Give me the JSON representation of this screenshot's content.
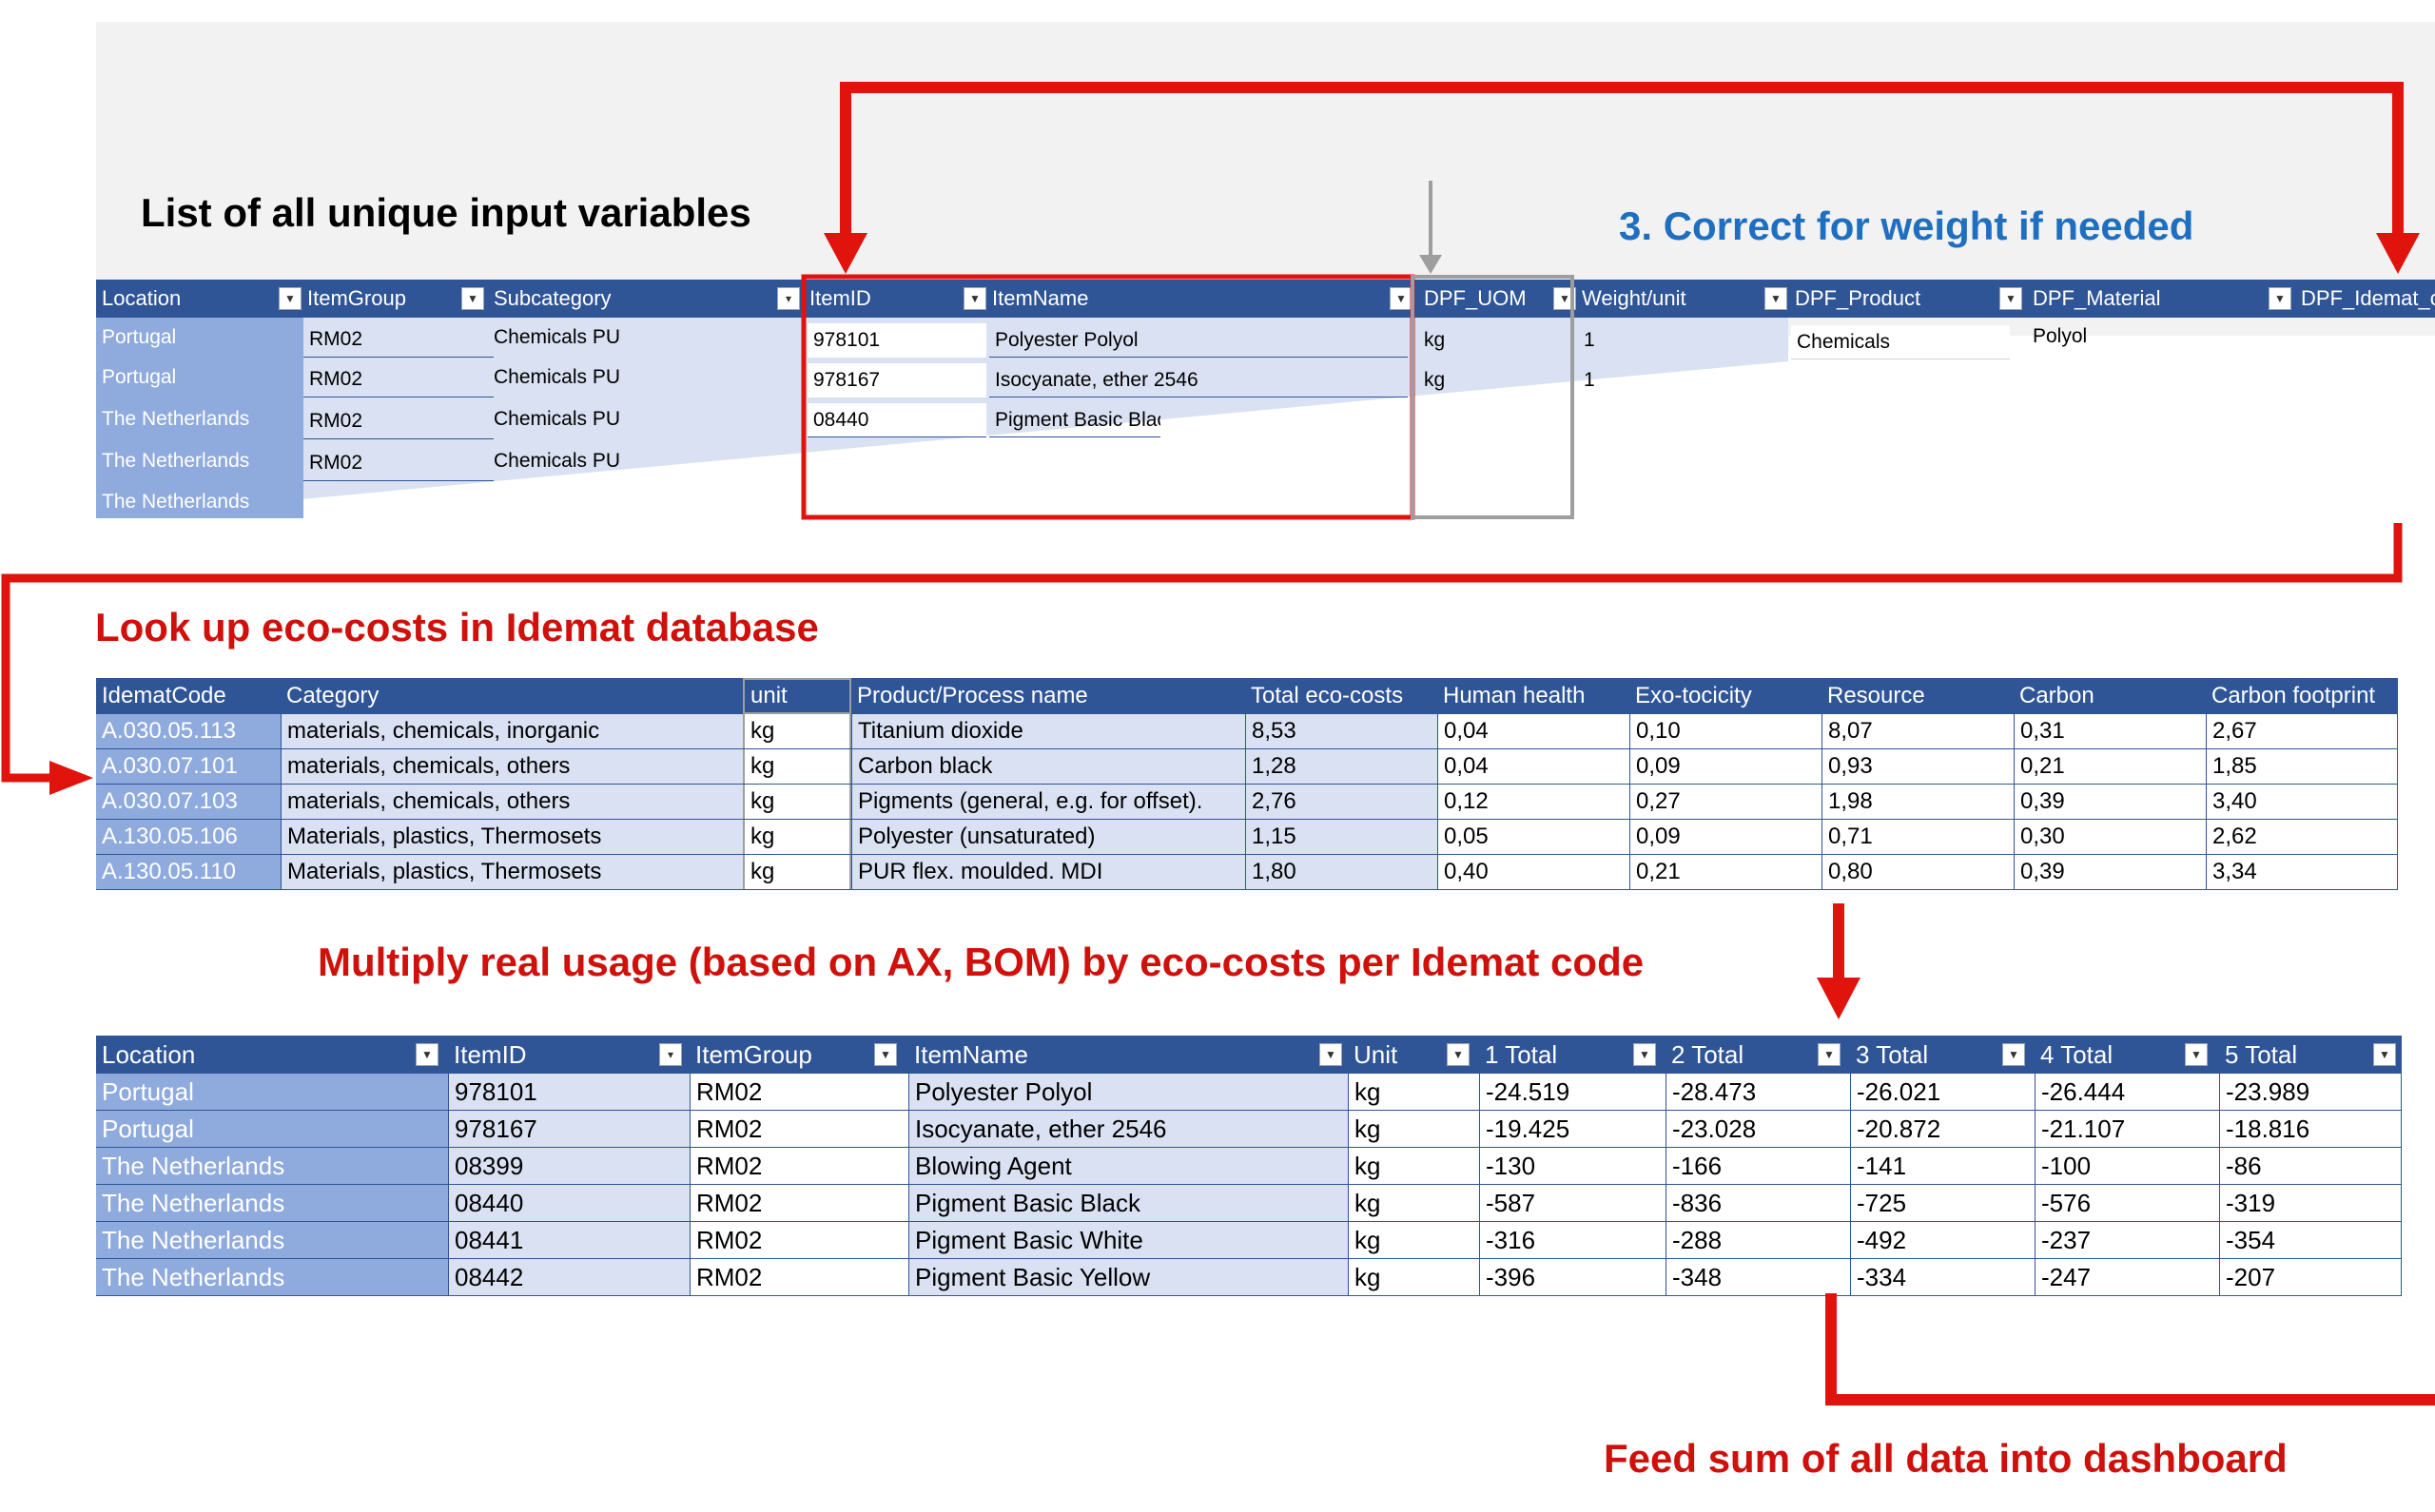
{
  "headings": {
    "list_title": "List of all unique input variables",
    "step3": "3. Correct for weight if needed",
    "lookup": "Look up eco-costs in Idemat database",
    "multiply": "Multiply real usage (based on AX, BOM) by eco-costs per Idemat code",
    "feed": "Feed sum of all data into dashboard"
  },
  "colors": {
    "header_blue": "#2f5597",
    "location_blue": "#8faadc",
    "light_blue": "#d9e1f2",
    "arrow_red": "#e0140d",
    "step3_blue": "#1f6fc0"
  },
  "input_table": {
    "columns": [
      "Location",
      "ItemGroup",
      "Subcategory",
      "ItemID",
      "ItemName",
      "DPF_UOM",
      "Weight/unit",
      "DPF_Product",
      "DPF_Material",
      "DPF_Idemat_c"
    ],
    "rows": [
      {
        "location": "Portugal",
        "itemgroup": "RM02",
        "subcategory": "Chemicals  PU",
        "itemid": "978101",
        "itemname": "Polyester Polyol",
        "uom": "kg",
        "weight": "1",
        "product": "Chemicals",
        "material": "Polyol"
      },
      {
        "location": "Portugal",
        "itemgroup": "RM02",
        "subcategory": "Chemicals  PU",
        "itemid": "978167",
        "itemname": "Isocyanate, ether 2546",
        "uom": "kg",
        "weight": "1"
      },
      {
        "location": "The Netherlands",
        "itemgroup": "RM02",
        "subcategory": "Chemicals PU",
        "itemid": "08440",
        "itemname": "Pigment Basic Black"
      },
      {
        "location": "The Netherlands",
        "itemgroup": "RM02",
        "subcategory": "Chemicals PU"
      },
      {
        "location": "The Netherlands"
      }
    ]
  },
  "idemat_table": {
    "columns": [
      "IdematCode",
      "Category",
      "unit",
      "Product/Process name",
      "Total eco-costs",
      "Human health",
      "Exo-tocicity",
      "Resource",
      "Carbon",
      "Carbon footprint"
    ],
    "rows": [
      [
        "A.030.05.113",
        "materials, chemicals, inorganic",
        "kg",
        "Titanium dioxide",
        "8,53",
        "0,04",
        "0,10",
        "8,07",
        "0,31",
        "2,67"
      ],
      [
        "A.030.07.101",
        "materials, chemicals, others",
        "kg",
        "Carbon black",
        "1,28",
        "0,04",
        "0,09",
        "0,93",
        "0,21",
        "1,85"
      ],
      [
        "A.030.07.103",
        "materials, chemicals, others",
        "kg",
        "Pigments (general, e.g. for offset).",
        "2,76",
        "0,12",
        "0,27",
        "1,98",
        "0,39",
        "3,40"
      ],
      [
        "A.130.05.106",
        "Materials, plastics, Thermosets",
        "kg",
        "Polyester (unsaturated)",
        "1,15",
        "0,05",
        "0,09",
        "0,71",
        "0,30",
        "2,62"
      ],
      [
        "A.130.05.110",
        "Materials, plastics, Thermosets",
        "kg",
        "PUR flex. moulded. MDI",
        "1,80",
        "0,40",
        "0,21",
        "0,80",
        "0,39",
        "3,34"
      ]
    ]
  },
  "usage_table": {
    "columns": [
      "Location",
      "ItemID",
      "ItemGroup",
      "ItemName",
      "Unit",
      "1 Total",
      "2 Total",
      "3 Total",
      "4 Total",
      "5 Total"
    ],
    "rows": [
      [
        "Portugal",
        "978101",
        "RM02",
        "Polyester Polyol",
        "kg",
        "-24.519",
        "-28.473",
        "-26.021",
        "-26.444",
        "-23.989"
      ],
      [
        "Portugal",
        "978167",
        "RM02",
        "Isocyanate, ether 2546",
        "kg",
        "-19.425",
        "-23.028",
        "-20.872",
        "-21.107",
        "-18.816"
      ],
      [
        "The Netherlands",
        "08399",
        "RM02",
        "Blowing Agent",
        "kg",
        "-130",
        "-166",
        "-141",
        "-100",
        "-86"
      ],
      [
        "The Netherlands",
        "08440",
        "RM02",
        "Pigment Basic Black",
        "kg",
        "-587",
        "-836",
        "-725",
        "-576",
        "-319"
      ],
      [
        "The Netherlands",
        "08441",
        "RM02",
        "Pigment Basic White",
        "kg",
        "-316",
        "-288",
        "-492",
        "-237",
        "-354"
      ],
      [
        "The Netherlands",
        "08442",
        "RM02",
        "Pigment Basic Yellow",
        "kg",
        "-396",
        "-348",
        "-334",
        "-247",
        "-207"
      ]
    ]
  }
}
